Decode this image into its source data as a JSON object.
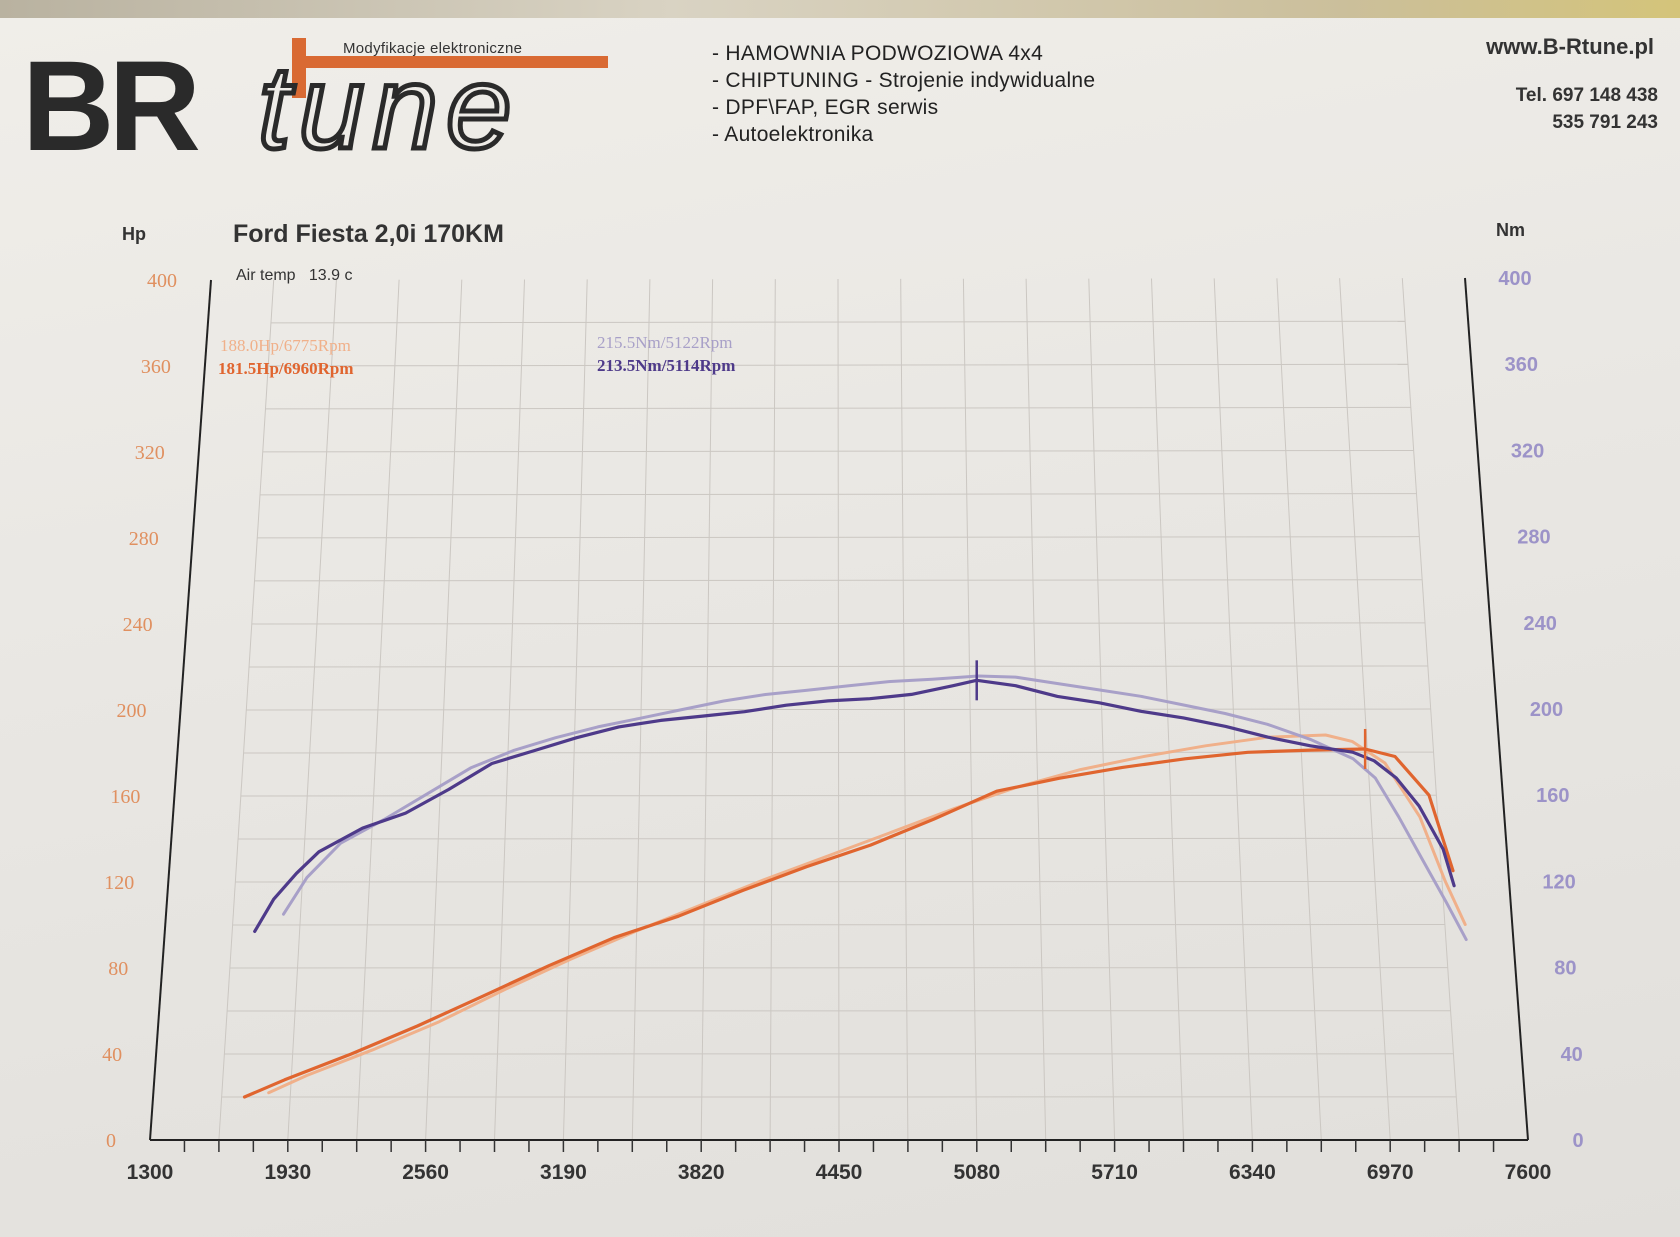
{
  "header": {
    "logo_text": "BRtune",
    "logo_tagline": "Modyfikacje elektroniczne",
    "services": [
      "- HAMOWNIA PODWOZIOWA  4x4",
      "- CHIPTUNING - Strojenie indywidualne",
      "- DPF\\FAP, EGR serwis",
      "- Autoelektronika"
    ],
    "website": "www.B-Rtune.pl",
    "phone_1": "Tel. 697 148 438",
    "phone_2": "535 791 243"
  },
  "colors": {
    "power_stock": "#f0b08a",
    "power_tuned": "#e0652f",
    "torque_stock": "#a8a0c8",
    "torque_tuned": "#4e3a8a",
    "left_axis": "#e09060",
    "right_axis": "#9c93c8",
    "grid": "#cbc7c2",
    "logo_dark": "#2a2a2a",
    "logo_orange": "#d96a33"
  },
  "chart_data": {
    "type": "line",
    "title": "Ford Fiesta 2,0i 170KM",
    "air_temp_label": "Air temp   13.9 c",
    "y_left_label": "Hp",
    "y_right_label": "Nm",
    "x_ticks": [
      "1300",
      "1930",
      "2560",
      "3190",
      "3820",
      "4450",
      "5080",
      "5710",
      "6340",
      "6970",
      "7600"
    ],
    "y_left_ticks": [
      "0",
      "40",
      "80",
      "120",
      "160",
      "200",
      "240",
      "280",
      "320",
      "360",
      "400"
    ],
    "y_right_ticks": [
      "0",
      "40",
      "80",
      "120",
      "160",
      "200",
      "240",
      "280",
      "320",
      "360",
      "400"
    ],
    "xlim": [
      1300,
      7600
    ],
    "ylim": [
      0,
      400
    ],
    "grid": true,
    "series": [
      {
        "name": "188.0Hp/6775Rpm",
        "axis": "left",
        "color_key": "power_stock",
        "x": [
          1830,
          2000,
          2300,
          2600,
          2900,
          3200,
          3500,
          3800,
          4100,
          4400,
          4700,
          5000,
          5300,
          5600,
          5900,
          6200,
          6500,
          6775,
          6900,
          7050,
          7200,
          7300,
          7380
        ],
        "y": [
          22,
          30,
          42,
          55,
          70,
          84,
          97,
          109,
          121,
          132,
          143,
          154,
          164,
          172,
          178,
          183,
          187,
          188,
          185,
          175,
          150,
          120,
          100
        ]
      },
      {
        "name": "181.5Hp/6960Rpm",
        "axis": "left",
        "color_key": "power_tuned",
        "x": [
          1720,
          1900,
          2200,
          2500,
          2800,
          3100,
          3400,
          3700,
          4000,
          4300,
          4600,
          4900,
          5200,
          5500,
          5800,
          6100,
          6400,
          6700,
          6960,
          7100,
          7250,
          7340
        ],
        "y": [
          20,
          28,
          40,
          53,
          67,
          81,
          94,
          104,
          116,
          127,
          137,
          149,
          162,
          168,
          173,
          177,
          180,
          181,
          181.5,
          178,
          160,
          125
        ]
      },
      {
        "name": "215.5Nm/5122Rpm",
        "axis": "right",
        "color_key": "torque_stock",
        "x": [
          1850,
          1950,
          2100,
          2300,
          2500,
          2700,
          2900,
          3100,
          3300,
          3500,
          3700,
          3900,
          4100,
          4300,
          4500,
          4700,
          4900,
          5122,
          5300,
          5500,
          5700,
          5900,
          6100,
          6300,
          6500,
          6700,
          6900,
          7000,
          7100,
          7200,
          7300,
          7380
        ],
        "y": [
          105,
          122,
          138,
          149,
          161,
          173,
          181,
          187,
          192,
          196,
          200,
          204,
          207,
          209,
          211,
          213,
          214,
          215.5,
          215,
          212,
          209,
          206,
          202,
          198,
          193,
          186,
          177,
          168,
          150,
          130,
          110,
          93
        ]
      },
      {
        "name": "213.5Nm/5114Rpm",
        "axis": "right",
        "color_key": "torque_tuned",
        "x": [
          1720,
          1800,
          1900,
          2000,
          2200,
          2400,
          2600,
          2800,
          3000,
          3200,
          3400,
          3600,
          3800,
          4000,
          4200,
          4400,
          4600,
          4800,
          5000,
          5114,
          5300,
          5500,
          5700,
          5900,
          6100,
          6300,
          6500,
          6700,
          6900,
          7000,
          7100,
          7200,
          7300,
          7340
        ],
        "y": [
          97,
          112,
          124,
          134,
          145,
          152,
          163,
          175,
          181,
          187,
          192,
          195,
          197,
          199,
          202,
          204,
          205,
          207,
          211,
          213.5,
          211,
          206,
          203,
          199,
          196,
          192,
          187,
          183,
          180,
          176,
          168,
          155,
          135,
          118
        ]
      }
    ],
    "peak_markers": [
      {
        "series": "213.5Nm/5114Rpm",
        "x": 5114,
        "y": 213.5
      },
      {
        "series": "181.5Hp/6960Rpm",
        "x": 6960,
        "y": 181.5
      }
    ]
  }
}
